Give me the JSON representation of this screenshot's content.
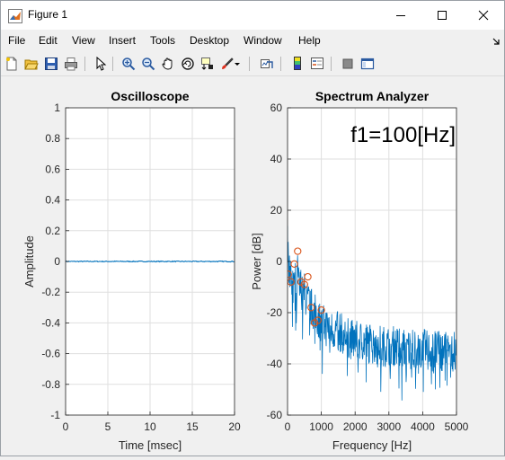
{
  "window": {
    "title": "Figure 1"
  },
  "menu": [
    "File",
    "Edit",
    "View",
    "Insert",
    "Tools",
    "Desktop",
    "Window",
    "Help"
  ],
  "toolbar": {
    "icons": [
      "new-figure-icon",
      "open-file-icon",
      "save-icon",
      "print-icon",
      "pointer-icon",
      "zoom-in-icon",
      "zoom-out-icon",
      "pan-icon",
      "rotate-3d-icon",
      "data-cursor-icon",
      "brush-icon",
      "brush-dropdown-icon",
      "link-plot-icon",
      "insert-colorbar-icon",
      "insert-legend-icon",
      "hide-plot-tools-icon",
      "show-plot-tools-icon"
    ]
  },
  "chart_data": [
    {
      "type": "line",
      "title": "Oscilloscope",
      "xlabel": "Time [msec]",
      "ylabel": "Amplitude",
      "xlim": [
        0,
        20
      ],
      "ylim": [
        -1,
        1
      ],
      "xticks": [
        "0",
        "5",
        "10",
        "15",
        "20"
      ],
      "yticks": [
        "-1",
        "-0.8",
        "-0.6",
        "-0.4",
        "-0.2",
        "0",
        "0.2",
        "0.4",
        "0.6",
        "0.8",
        "1"
      ],
      "grid": true,
      "series": [
        {
          "color": "#0072bd",
          "x": [
            0,
            20
          ],
          "y": [
            0,
            0
          ]
        }
      ]
    },
    {
      "type": "line",
      "title": "Spectrum Analyzer",
      "xlabel": "Frequency [Hz]",
      "ylabel": "Power [dB]",
      "xlim": [
        0,
        5000
      ],
      "ylim": [
        -60,
        60
      ],
      "xticks": [
        "0",
        "1000",
        "2000",
        "3000",
        "4000",
        "5000"
      ],
      "yticks": [
        "-60",
        "-40",
        "-20",
        "0",
        "20",
        "40",
        "60"
      ],
      "grid": true,
      "annotation": "f1=100[Hz]",
      "series": [
        {
          "color": "#0072bd",
          "x": [
            0,
            50,
            100,
            150,
            200,
            250,
            300,
            350,
            400,
            450,
            500,
            600,
            700,
            800,
            900,
            1000,
            1200,
            1400,
            1600,
            1800,
            2000,
            2200,
            2400,
            2600,
            2800,
            3000,
            3200,
            3400,
            3600,
            3800,
            4000,
            4200,
            4400,
            4600,
            4800,
            5000
          ],
          "y": [
            11,
            -5,
            -2,
            -8,
            -6,
            -10,
            -4,
            -12,
            -9,
            -14,
            -12,
            -16,
            -18,
            -20,
            -22,
            -24,
            -26,
            -27,
            -28,
            -30,
            -31,
            -31,
            -32,
            -32,
            -33,
            -33,
            -33,
            -34,
            -34,
            -34,
            -34,
            -35,
            -35,
            -35,
            -35,
            -35
          ]
        },
        {
          "color": "#d95319",
          "marker": "circle",
          "x": [
            20,
            100,
            200,
            300,
            400,
            500,
            600,
            700,
            800,
            900,
            1000
          ],
          "y": [
            -5,
            -8,
            -1,
            4,
            -8,
            -9,
            -6,
            -18,
            -24,
            -23,
            -19
          ]
        }
      ]
    }
  ]
}
